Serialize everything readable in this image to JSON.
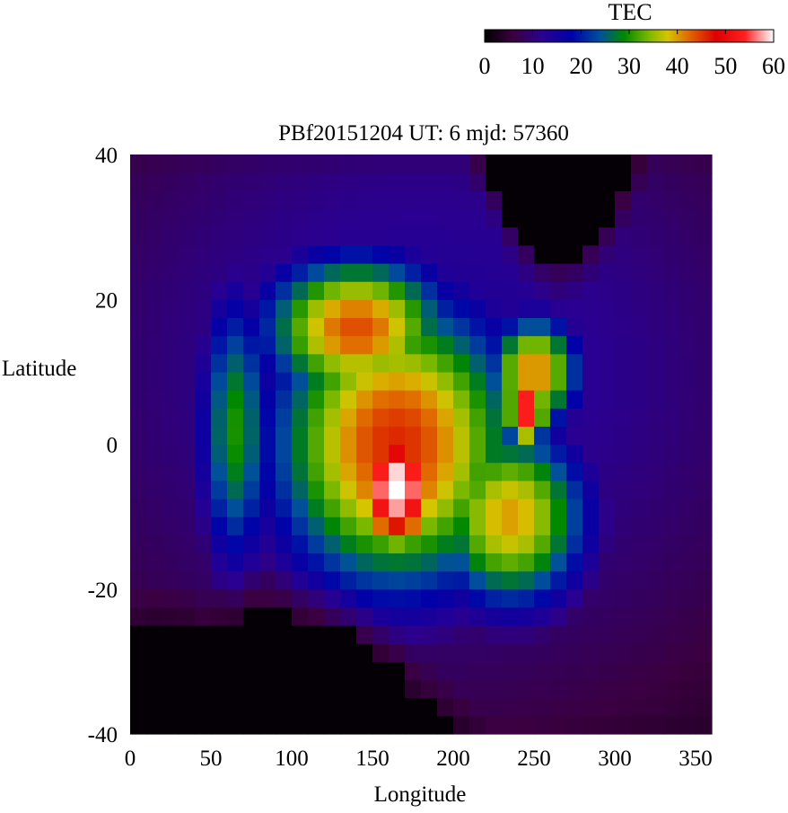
{
  "chart_data": {
    "type": "heatmap",
    "title": "PBf20151204  UT: 6  mjd: 57360",
    "xlabel": "Longitude",
    "ylabel": "Latitude",
    "xlim": [
      0,
      360
    ],
    "ylim": [
      -40,
      40
    ],
    "x_ticks": [
      "0",
      "50",
      "100",
      "150",
      "200",
      "250",
      "300",
      "350"
    ],
    "y_ticks": [
      "40",
      "20",
      "0",
      "-20",
      "-40"
    ],
    "colorbar": {
      "label": "TEC",
      "range": [
        0,
        60
      ],
      "ticks": [
        "0",
        "10",
        "20",
        "30",
        "40",
        "50",
        "60"
      ],
      "stops": [
        {
          "value": 0,
          "color": "#000000"
        },
        {
          "value": 6,
          "color": "#3a0040"
        },
        {
          "value": 12,
          "color": "#2a0090"
        },
        {
          "value": 18,
          "color": "#0000a8"
        },
        {
          "value": 24,
          "color": "#00509a"
        },
        {
          "value": 29,
          "color": "#008800"
        },
        {
          "value": 34,
          "color": "#7ab800"
        },
        {
          "value": 38,
          "color": "#d6c400"
        },
        {
          "value": 42,
          "color": "#e07000"
        },
        {
          "value": 48,
          "color": "#dd0000"
        },
        {
          "value": 54,
          "color": "#ff2020"
        },
        {
          "value": 60,
          "color": "#ffffff"
        }
      ]
    },
    "grid": {
      "lon_start": 0,
      "lon_step": 10,
      "lon_count": 36,
      "lat_start": -40,
      "lat_step": 2.5,
      "lat_count": 32
    },
    "features": [
      {
        "name": "equatorial_crest",
        "lon": 165,
        "lat": -6,
        "peak": 62,
        "slon": 22,
        "slat": 7
      },
      {
        "name": "north_crest",
        "lon": 245,
        "lat": 5,
        "peak": 56,
        "slon": 10,
        "slat": 4
      },
      {
        "name": "main_band",
        "lon": 165,
        "lat": 0,
        "peak": 46,
        "slon": 60,
        "slat": 16
      },
      {
        "name": "north_lobe",
        "lon": 140,
        "lat": 16,
        "peak": 44,
        "slon": 45,
        "slat": 8
      },
      {
        "name": "south_wing",
        "lon": 235,
        "lat": -10,
        "peak": 40,
        "slon": 38,
        "slat": 10
      },
      {
        "name": "east_ridge",
        "lon": 250,
        "lat": 10,
        "peak": 42,
        "slon": 22,
        "slat": 6
      },
      {
        "name": "west_ridge",
        "lon": 65,
        "lat": 2,
        "peak": 30,
        "slon": 18,
        "slat": 16
      },
      {
        "name": "background",
        "lon": 180,
        "lat": 10,
        "peak": 14,
        "slon": 200,
        "slat": 40
      }
    ],
    "night_boundary": {
      "south_edge_lats": [
        -26,
        -25,
        -25,
        -25,
        -26,
        -25,
        -24,
        -23,
        -23,
        -23,
        -24,
        -24,
        -25,
        -26,
        -27,
        -29,
        -31,
        -34,
        -36,
        -38,
        -40,
        -42,
        -44,
        -44,
        -44,
        -44,
        -44,
        -44,
        -44,
        -44,
        -44,
        -44,
        -44,
        -44,
        -44,
        -44
      ],
      "north_edge_lats": [
        44,
        44,
        44,
        44,
        44,
        44,
        44,
        44,
        44,
        44,
        44,
        44,
        44,
        44,
        44,
        44,
        44,
        44,
        44,
        44,
        44,
        40,
        36,
        31,
        28,
        26,
        25,
        26,
        28,
        31,
        35,
        40,
        44,
        44,
        44,
        44
      ]
    }
  }
}
